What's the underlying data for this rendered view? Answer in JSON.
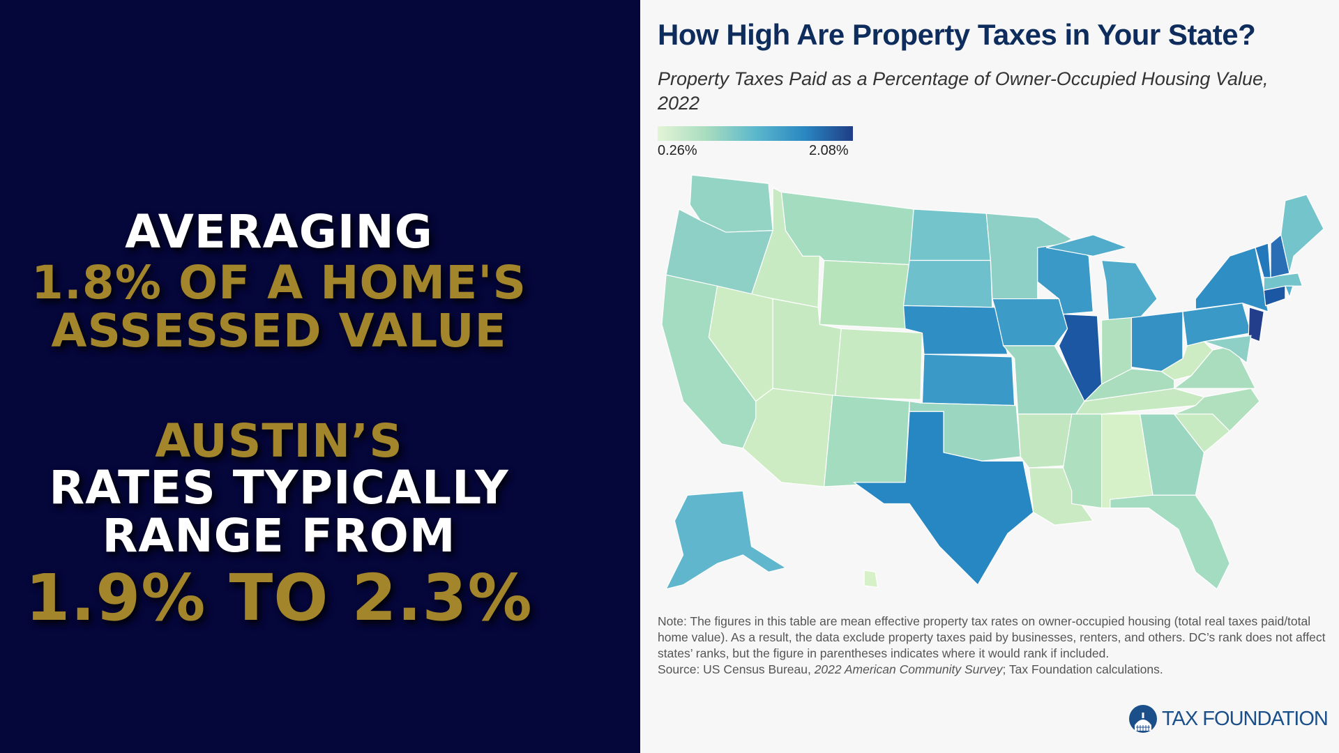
{
  "overlay": {
    "lines": [
      {
        "text": "AVERAGING",
        "color": "#ffffff"
      },
      {
        "text": "1.8% OF A HOME'S",
        "color": "#a3862b"
      },
      {
        "text": "ASSESSED VALUE",
        "color": "#a3862b"
      },
      {
        "text": "AUSTIN’S",
        "color": "#a3862b"
      },
      {
        "text": "RATES TYPICALLY",
        "color": "#ffffff"
      },
      {
        "text": "RANGE FROM",
        "color": "#ffffff"
      },
      {
        "text": "1.9% TO 2.3%",
        "color": "#a3862b"
      }
    ]
  },
  "chart": {
    "title": "How High Are Property Taxes in Your State?",
    "subtitle": "Property Taxes Paid as a Percentage of Owner-Occupied Housing Value, 2022",
    "note": "Note: The figures in this table are mean effective property tax rates on owner-occupied housing (total real taxes paid/total home value). As a result, the data exclude property taxes paid by businesses, renters, and others. DC’s rank does not affect states’ ranks, but the figure in parentheses indicates where it would rank if included.",
    "source_prefix": "Source: US Census Bureau, ",
    "source_italic": "2022 American Community Survey",
    "source_suffix": "; Tax Foundation calculations.",
    "logo": "TAX FOUNDATION"
  },
  "chart_data": {
    "type": "choropleth",
    "legend": {
      "min_label": "0.26%",
      "max_label": "2.08%",
      "min": 0.26,
      "max": 2.08,
      "colors": [
        "#e4f4d6",
        "#a8dcbf",
        "#5cb8cc",
        "#2a88c2",
        "#1f3d86"
      ]
    },
    "state_colors": {
      "WA": "#94d4c4",
      "OR": "#8fd0c6",
      "CA": "#a3dcc0",
      "ID": "#c8eac2",
      "NV": "#cdecc3",
      "MT": "#a4dcc0",
      "WY": "#b8e4bb",
      "UT": "#c6e9c1",
      "CO": "#c8eac2",
      "AZ": "#cdecc3",
      "NM": "#a4dcc0",
      "ND": "#74c4cc",
      "SD": "#6fc0cd",
      "NE": "#2f8fc4",
      "KS": "#3a99c6",
      "OK": "#9ad6c0",
      "TX": "#2787c3",
      "MN": "#8fd0c6",
      "IA": "#3d9cc7",
      "MO": "#9ad6c0",
      "AR": "#c1e6c0",
      "LA": "#c9eac2",
      "WI": "#3a99c6",
      "IL": "#1b57a3",
      "MI": "#50acca",
      "IN": "#b0e0bd",
      "OH": "#3590c4",
      "KY": "#a9ddbe",
      "TN": "#c6e9c1",
      "MS": "#aedfbe",
      "AL": "#d6f0c8",
      "GA": "#9ad6c0",
      "FL": "#a3dcc0",
      "SC": "#c8eac2",
      "NC": "#b0e0bd",
      "VA": "#a9ddbe",
      "WV": "#cdecc3",
      "PA": "#3a99c6",
      "NY": "#2f8fc4",
      "NJ": "#233f8b",
      "MD": "#8fd0c6",
      "CT": "#1b57a3",
      "MA": "#74c4cc",
      "VT": "#2377bb",
      "NH": "#2a6fb5",
      "ME": "#74c4cc",
      "RI": "#56b0cc",
      "AK": "#5fb6cd",
      "HI": "#d6f0c8"
    }
  }
}
